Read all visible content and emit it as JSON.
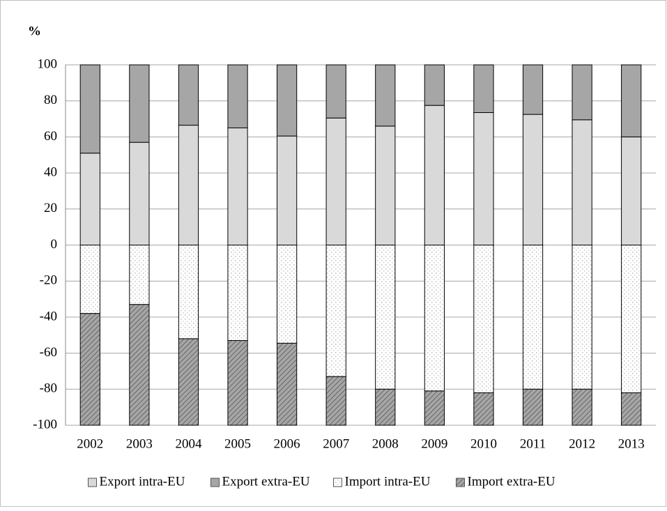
{
  "chart_data": {
    "type": "bar",
    "stacked": true,
    "y_label": "%",
    "categories": [
      "2002",
      "2003",
      "2004",
      "2005",
      "2006",
      "2007",
      "2008",
      "2009",
      "2010",
      "2011",
      "2012",
      "2013"
    ],
    "series": [
      {
        "name": "Export intra-EU",
        "color": "#d9d9d9",
        "pattern": "solid",
        "values": [
          51,
          57,
          66.5,
          65,
          60.5,
          70.5,
          66,
          77.5,
          73.5,
          72.5,
          69.5,
          60
        ]
      },
      {
        "name": "Export extra-EU",
        "color": "#a6a6a6",
        "pattern": "solid",
        "values": [
          49,
          43,
          33.5,
          35,
          39.5,
          29.5,
          34,
          22.5,
          26.5,
          27.5,
          30.5,
          40
        ]
      },
      {
        "name": "Import intra-EU",
        "color": "#ffffff",
        "pattern": "dots",
        "values": [
          -38,
          -33,
          -52,
          -53,
          -54.5,
          -73,
          -80,
          -81,
          -82,
          -80,
          -80,
          -82
        ]
      },
      {
        "name": "Import extra-EU",
        "color": "#a6a6a6",
        "pattern": "hatch",
        "values": [
          -62,
          -67,
          -48,
          -47,
          -45.5,
          -27,
          -20,
          -19,
          -18,
          -20,
          -20,
          -18
        ]
      }
    ],
    "ylim": [
      -100,
      100
    ],
    "yticks": [
      -100,
      -80,
      -60,
      -40,
      -20,
      0,
      20,
      40,
      60,
      80,
      100
    ],
    "grid": true,
    "legend": "bottom"
  }
}
